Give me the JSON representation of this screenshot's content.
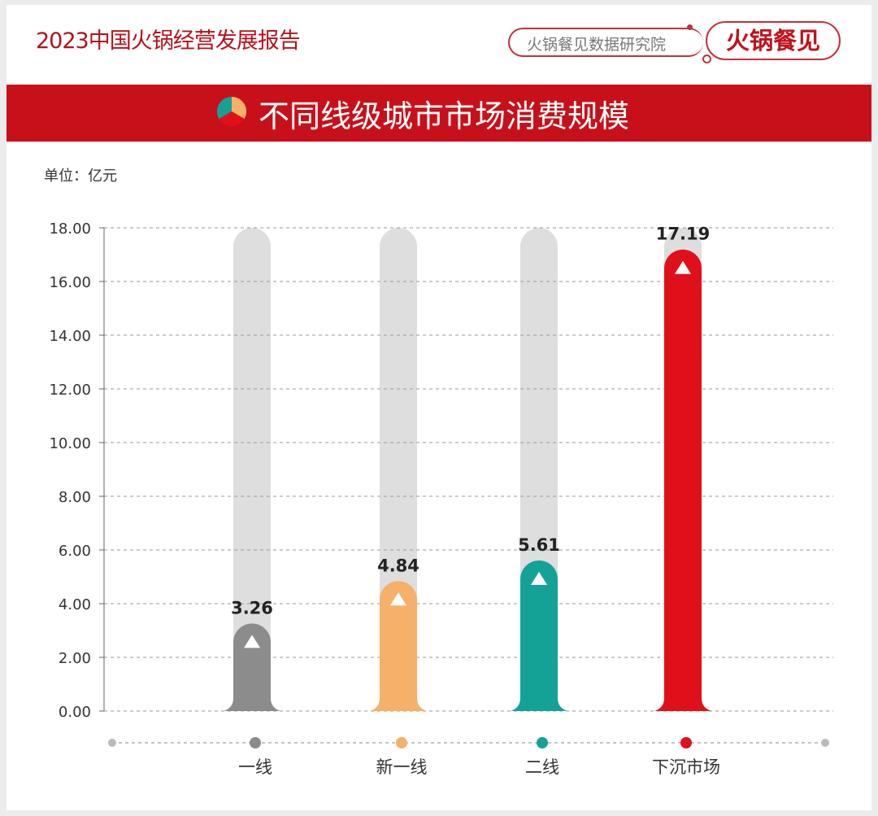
{
  "header": {
    "report_title": "2023中国火锅经营发展报告",
    "brand_sub": "火锅餐见数据研究院",
    "brand_logo": "火锅餐见"
  },
  "banner": {
    "title": "不同线级城市市场消费规模",
    "icon": "pie-chart-icon"
  },
  "unit_label": "单位：亿元",
  "chart_data": {
    "type": "bar",
    "title": "不同线级城市市场消费规模",
    "ylabel": "单位：亿元",
    "ylim": [
      0,
      18
    ],
    "yticks": [
      "0.00",
      "2.00",
      "4.00",
      "6.00",
      "8.00",
      "10.00",
      "12.00",
      "14.00",
      "16.00",
      "18.00"
    ],
    "grid": true,
    "categories": [
      "一线",
      "新一线",
      "二线",
      "下沉市场"
    ],
    "values": [
      3.26,
      4.84,
      5.61,
      17.19
    ],
    "value_labels": [
      "3.26",
      "4.84",
      "5.61",
      "17.19"
    ],
    "colors": [
      "#8c8c8c",
      "#f5b06a",
      "#15a296",
      "#e0101b"
    ],
    "background_bar_color": "#dedede"
  }
}
